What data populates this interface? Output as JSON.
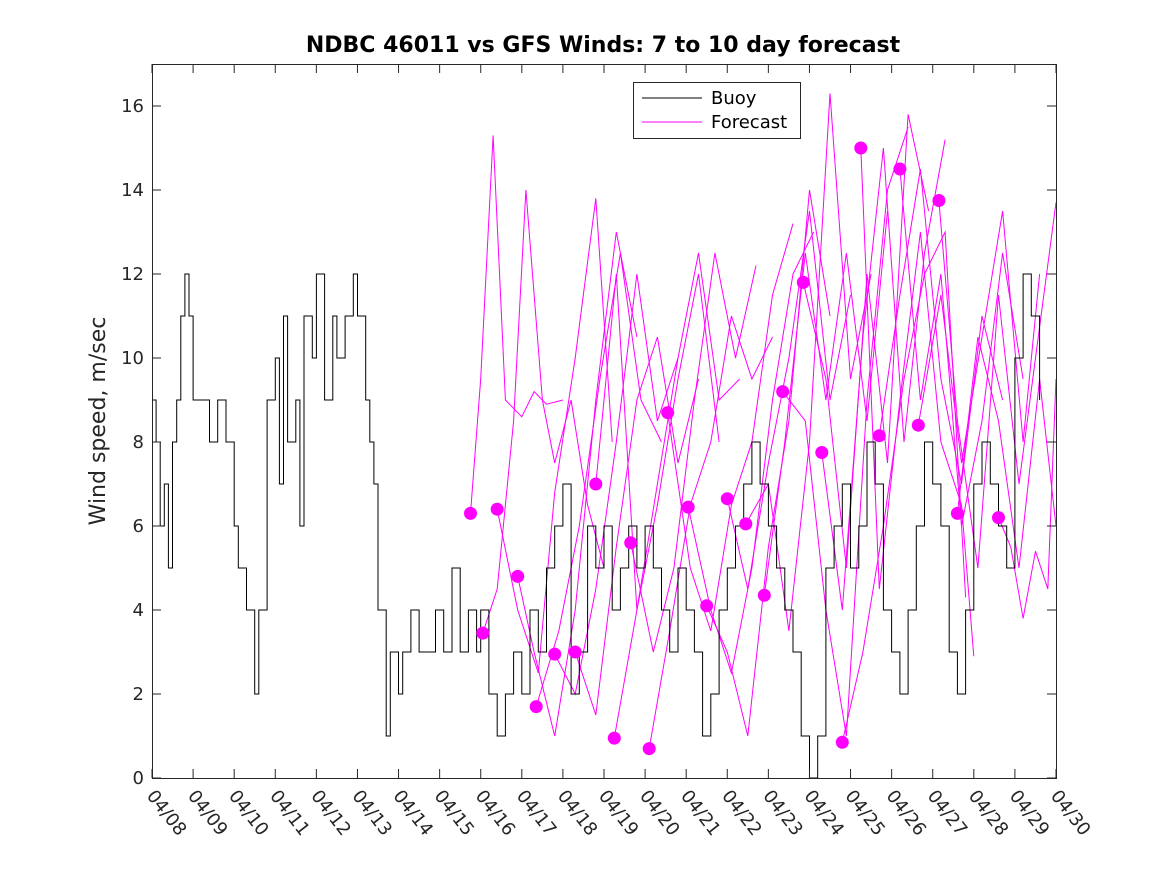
{
  "chart_data": {
    "type": "line",
    "title": "NDBC 46011 vs GFS Winds: 7 to 10 day forecast",
    "xlabel": "",
    "ylabel": "Wind speed, m/sec",
    "x_tick_labels": [
      "04/08",
      "04/09",
      "04/10",
      "04/11",
      "04/12",
      "04/13",
      "04/14",
      "04/15",
      "04/16",
      "04/17",
      "04/18",
      "04/19",
      "04/20",
      "04/21",
      "04/22",
      "04/23",
      "04/24",
      "04/25",
      "04/26",
      "04/27",
      "04/28",
      "04/29",
      "04/30"
    ],
    "x_range_days": [
      0,
      22
    ],
    "y_ticks": [
      0,
      2,
      4,
      6,
      8,
      10,
      12,
      14,
      16
    ],
    "ylim": [
      0,
      17
    ],
    "legend": {
      "position": "top-right-inside",
      "entries": [
        "Buoy",
        "Forecast"
      ]
    },
    "colors": {
      "buoy": "#000000",
      "forecast": "#ff00ff"
    },
    "series": [
      {
        "name": "Buoy",
        "style": "black-step-line",
        "x": [
          0,
          0.1,
          0.2,
          0.3,
          0.4,
          0.5,
          0.6,
          0.7,
          0.8,
          0.9,
          1.0,
          1.2,
          1.4,
          1.5,
          1.6,
          1.8,
          2.0,
          2.1,
          2.3,
          2.5,
          2.6,
          2.8,
          3.0,
          3.1,
          3.2,
          3.3,
          3.5,
          3.6,
          3.7,
          3.9,
          4.0,
          4.2,
          4.4,
          4.5,
          4.7,
          4.9,
          5.0,
          5.2,
          5.3,
          5.4,
          5.5,
          5.7,
          5.8,
          6.0,
          6.1,
          6.3,
          6.5,
          6.7,
          6.9,
          7.1,
          7.3,
          7.5,
          7.7,
          7.9,
          8.0,
          8.2,
          8.4,
          8.6,
          8.8,
          9.0,
          9.2,
          9.4,
          9.6,
          9.8,
          10.0,
          10.2,
          10.4,
          10.6,
          10.8,
          11.0,
          11.2,
          11.4,
          11.6,
          11.8,
          12.0,
          12.2,
          12.4,
          12.6,
          12.8,
          13.0,
          13.2,
          13.4,
          13.6,
          13.8,
          14.0,
          14.2,
          14.4,
          14.6,
          14.8,
          15.0,
          15.2,
          15.4,
          15.6,
          15.8,
          16.0,
          16.2,
          16.4,
          16.6,
          16.8,
          17.0,
          17.2,
          17.4,
          17.6,
          17.8,
          18.0,
          18.2,
          18.4,
          18.6,
          18.8,
          19.0,
          19.2,
          19.4,
          19.6,
          19.8,
          20.0,
          20.2,
          20.4,
          20.6,
          20.8,
          21.0,
          21.2,
          21.4,
          21.6
        ],
        "y": [
          9,
          8,
          6,
          7,
          5,
          8,
          9,
          11,
          12,
          11,
          9,
          9,
          8,
          8,
          9,
          8,
          6,
          5,
          4,
          2,
          4,
          9,
          10,
          7,
          11,
          8,
          9,
          6,
          11,
          10,
          12,
          9,
          11,
          10,
          11,
          12,
          11,
          9,
          8,
          7,
          4,
          1,
          3,
          2,
          3,
          4,
          3,
          3,
          4,
          3,
          5,
          3,
          4,
          3,
          4,
          2,
          1,
          2,
          3,
          2,
          4,
          3,
          5,
          6,
          7,
          2,
          3,
          6,
          5,
          6,
          4,
          5,
          6,
          5,
          6,
          5,
          4,
          3,
          5,
          4,
          3,
          1,
          2,
          4,
          5,
          6,
          7,
          8,
          7,
          6,
          5,
          4,
          3,
          1,
          0,
          1,
          5,
          6,
          7,
          5,
          6,
          8,
          7,
          4,
          3,
          2,
          4,
          6,
          8,
          7,
          6,
          3,
          2,
          4,
          7,
          8,
          7,
          6,
          5,
          10,
          12,
          11,
          9
        ]
      },
      {
        "name": "Forecast",
        "style": "magenta-lines-with-start-markers",
        "start_markers": [
          {
            "x": 7.75,
            "y": 6.3
          },
          {
            "x": 8.05,
            "y": 3.45
          },
          {
            "x": 8.4,
            "y": 6.4
          },
          {
            "x": 8.9,
            "y": 4.8
          },
          {
            "x": 9.35,
            "y": 1.7
          },
          {
            "x": 9.8,
            "y": 2.95
          },
          {
            "x": 10.3,
            "y": 3.0
          },
          {
            "x": 10.8,
            "y": 7.0
          },
          {
            "x": 11.25,
            "y": 0.95
          },
          {
            "x": 11.65,
            "y": 5.6
          },
          {
            "x": 12.1,
            "y": 0.7
          },
          {
            "x": 12.55,
            "y": 8.7
          },
          {
            "x": 13.05,
            "y": 6.45
          },
          {
            "x": 13.5,
            "y": 4.1
          },
          {
            "x": 14.0,
            "y": 6.65
          },
          {
            "x": 14.45,
            "y": 6.05
          },
          {
            "x": 14.9,
            "y": 4.35
          },
          {
            "x": 15.35,
            "y": 9.2
          },
          {
            "x": 15.85,
            "y": 11.8
          },
          {
            "x": 16.3,
            "y": 7.75
          },
          {
            "x": 16.8,
            "y": 0.85
          },
          {
            "x": 17.25,
            "y": 15.0
          },
          {
            "x": 17.7,
            "y": 8.15
          },
          {
            "x": 18.2,
            "y": 14.5
          },
          {
            "x": 18.65,
            "y": 8.4
          },
          {
            "x": 19.15,
            "y": 13.75
          },
          {
            "x": 19.6,
            "y": 6.3
          },
          {
            "x": 20.6,
            "y": 6.2
          }
        ],
        "traces": [
          {
            "x": [
              7.75,
              8.0,
              8.3,
              8.6,
              9.0,
              9.3,
              9.6,
              10.0
            ],
            "y": [
              6.3,
              9.5,
              15.3,
              9.0,
              8.6,
              9.2,
              8.9,
              9.0
            ]
          },
          {
            "x": [
              8.05,
              8.4,
              8.8,
              9.1,
              9.5,
              9.8,
              10.2,
              10.6,
              11.0
            ],
            "y": [
              3.45,
              4.5,
              8.5,
              14.0,
              9.0,
              7.5,
              9.0,
              6.5,
              5.0
            ]
          },
          {
            "x": [
              8.4,
              8.9,
              9.4,
              9.8,
              10.3,
              10.8,
              11.2
            ],
            "y": [
              6.4,
              4.0,
              2.5,
              6.8,
              10.0,
              13.8,
              8.0
            ]
          },
          {
            "x": [
              8.9,
              9.3,
              9.8,
              10.3,
              10.8,
              11.3,
              11.8
            ],
            "y": [
              4.8,
              3.0,
              1.0,
              4.0,
              9.0,
              13.0,
              10.5
            ]
          },
          {
            "x": [
              9.35,
              9.9,
              10.4,
              10.9,
              11.4,
              11.9,
              12.4
            ],
            "y": [
              1.7,
              3.5,
              6.0,
              9.5,
              12.5,
              9.0,
              8.0
            ]
          },
          {
            "x": [
              9.8,
              10.3,
              10.8,
              11.3,
              11.8,
              12.3,
              12.8
            ],
            "y": [
              2.95,
              2.0,
              4.5,
              8.0,
              12.0,
              8.5,
              10.0
            ]
          },
          {
            "x": [
              10.3,
              10.8,
              11.3,
              11.8,
              12.3,
              12.8,
              13.3
            ],
            "y": [
              3.0,
              1.5,
              5.5,
              9.0,
              10.5,
              7.5,
              9.5
            ]
          },
          {
            "x": [
              10.8,
              11.3,
              11.8,
              12.3,
              12.8,
              13.3,
              13.8
            ],
            "y": [
              7.0,
              12.0,
              4.0,
              6.5,
              9.5,
              12.0,
              8.0
            ]
          },
          {
            "x": [
              11.25,
              11.8,
              12.3,
              12.8,
              13.3,
              13.8,
              14.3
            ],
            "y": [
              0.95,
              4.0,
              7.0,
              10.0,
              12.5,
              9.0,
              9.5
            ]
          },
          {
            "x": [
              11.65,
              12.2,
              12.7,
              13.2,
              13.7,
              14.2,
              14.7
            ],
            "y": [
              5.6,
              3.0,
              5.0,
              9.0,
              12.5,
              10.0,
              12.2
            ]
          },
          {
            "x": [
              12.1,
              12.6,
              13.1,
              13.6,
              14.1,
              14.6,
              15.1
            ],
            "y": [
              0.7,
              3.5,
              6.5,
              8.0,
              11.0,
              9.5,
              10.5
            ]
          },
          {
            "x": [
              12.55,
              13.1,
              13.6,
              14.1,
              14.6,
              15.1,
              15.6
            ],
            "y": [
              8.7,
              5.0,
              3.5,
              6.5,
              8.0,
              11.5,
              13.2
            ]
          },
          {
            "x": [
              13.05,
              13.6,
              14.1,
              14.6,
              15.1,
              15.6,
              16.1
            ],
            "y": [
              6.45,
              4.0,
              2.5,
              5.0,
              9.0,
              12.0,
              13.0
            ]
          },
          {
            "x": [
              13.5,
              14.0,
              14.5,
              15.0,
              15.5,
              16.0,
              16.5
            ],
            "y": [
              4.1,
              3.0,
              1.0,
              5.5,
              8.5,
              14.0,
              11.0
            ]
          },
          {
            "x": [
              14.0,
              14.5,
              15.0,
              15.5,
              16.0,
              16.5,
              17.0
            ],
            "y": [
              6.65,
              4.5,
              7.5,
              10.0,
              13.5,
              9.0,
              11.5
            ]
          },
          {
            "x": [
              14.45,
              15.0,
              15.5,
              16.0,
              16.5,
              17.0,
              17.5
            ],
            "y": [
              6.05,
              7.0,
              3.5,
              8.0,
              16.3,
              9.5,
              12.0
            ]
          },
          {
            "x": [
              14.9,
              15.4,
              15.9,
              16.4,
              16.9,
              17.4,
              17.9
            ],
            "y": [
              4.35,
              8.0,
              12.5,
              9.0,
              12.5,
              8.5,
              13.5
            ]
          },
          {
            "x": [
              15.35,
              15.9,
              16.4,
              16.9,
              17.4,
              17.9,
              18.4
            ],
            "y": [
              9.2,
              8.5,
              4.0,
              1.0,
              9.0,
              14.0,
              15.5
            ]
          },
          {
            "x": [
              15.85,
              16.4,
              16.9,
              17.4,
              17.9,
              18.4,
              18.9
            ],
            "y": [
              11.8,
              9.5,
              5.0,
              12.0,
              7.5,
              15.8,
              13.5
            ]
          },
          {
            "x": [
              16.3,
              16.8,
              17.3,
              17.8,
              18.3,
              18.8,
              19.3
            ],
            "y": [
              7.75,
              4.0,
              10.5,
              15.0,
              8.0,
              12.5,
              15.2
            ]
          },
          {
            "x": [
              16.8,
              17.3,
              17.8,
              18.3,
              18.8,
              19.3,
              19.8
            ],
            "y": [
              0.85,
              3.0,
              6.0,
              9.5,
              12.0,
              13.0,
              4.3
            ]
          },
          {
            "x": [
              17.25,
              17.7,
              18.2,
              18.7,
              19.2,
              19.7,
              20.0
            ],
            "y": [
              15.0,
              4.5,
              9.0,
              13.0,
              8.0,
              6.5,
              2.9
            ]
          },
          {
            "x": [
              17.7,
              18.2,
              18.7,
              19.2,
              19.7,
              20.2,
              20.7
            ],
            "y": [
              8.15,
              11.5,
              14.5,
              9.5,
              7.0,
              11.0,
              9.0
            ]
          },
          {
            "x": [
              18.2,
              18.7,
              19.2,
              19.7,
              20.2,
              20.7,
              21.2
            ],
            "y": [
              14.5,
              9.0,
              12.0,
              6.0,
              8.5,
              12.5,
              9.5
            ]
          },
          {
            "x": [
              18.65,
              19.2,
              19.7,
              20.2,
              20.7,
              21.2,
              21.6
            ],
            "y": [
              8.4,
              11.5,
              7.5,
              10.5,
              13.5,
              8.0,
              12.0
            ]
          },
          {
            "x": [
              19.15,
              19.6,
              20.1,
              20.6,
              21.1,
              21.5,
              22.0
            ],
            "y": [
              13.75,
              8.5,
              5.0,
              11.5,
              7.0,
              10.0,
              13.7
            ]
          },
          {
            "x": [
              19.6,
              20.1,
              20.6,
              21.1,
              21.6,
              22.0
            ],
            "y": [
              6.3,
              10.5,
              8.5,
              5.0,
              9.5,
              6.0
            ]
          },
          {
            "x": [
              20.6,
              20.9,
              21.2,
              21.5,
              21.8,
              22.0
            ],
            "y": [
              6.2,
              5.5,
              3.8,
              5.4,
              4.5,
              9.5
            ]
          }
        ]
      }
    ]
  }
}
